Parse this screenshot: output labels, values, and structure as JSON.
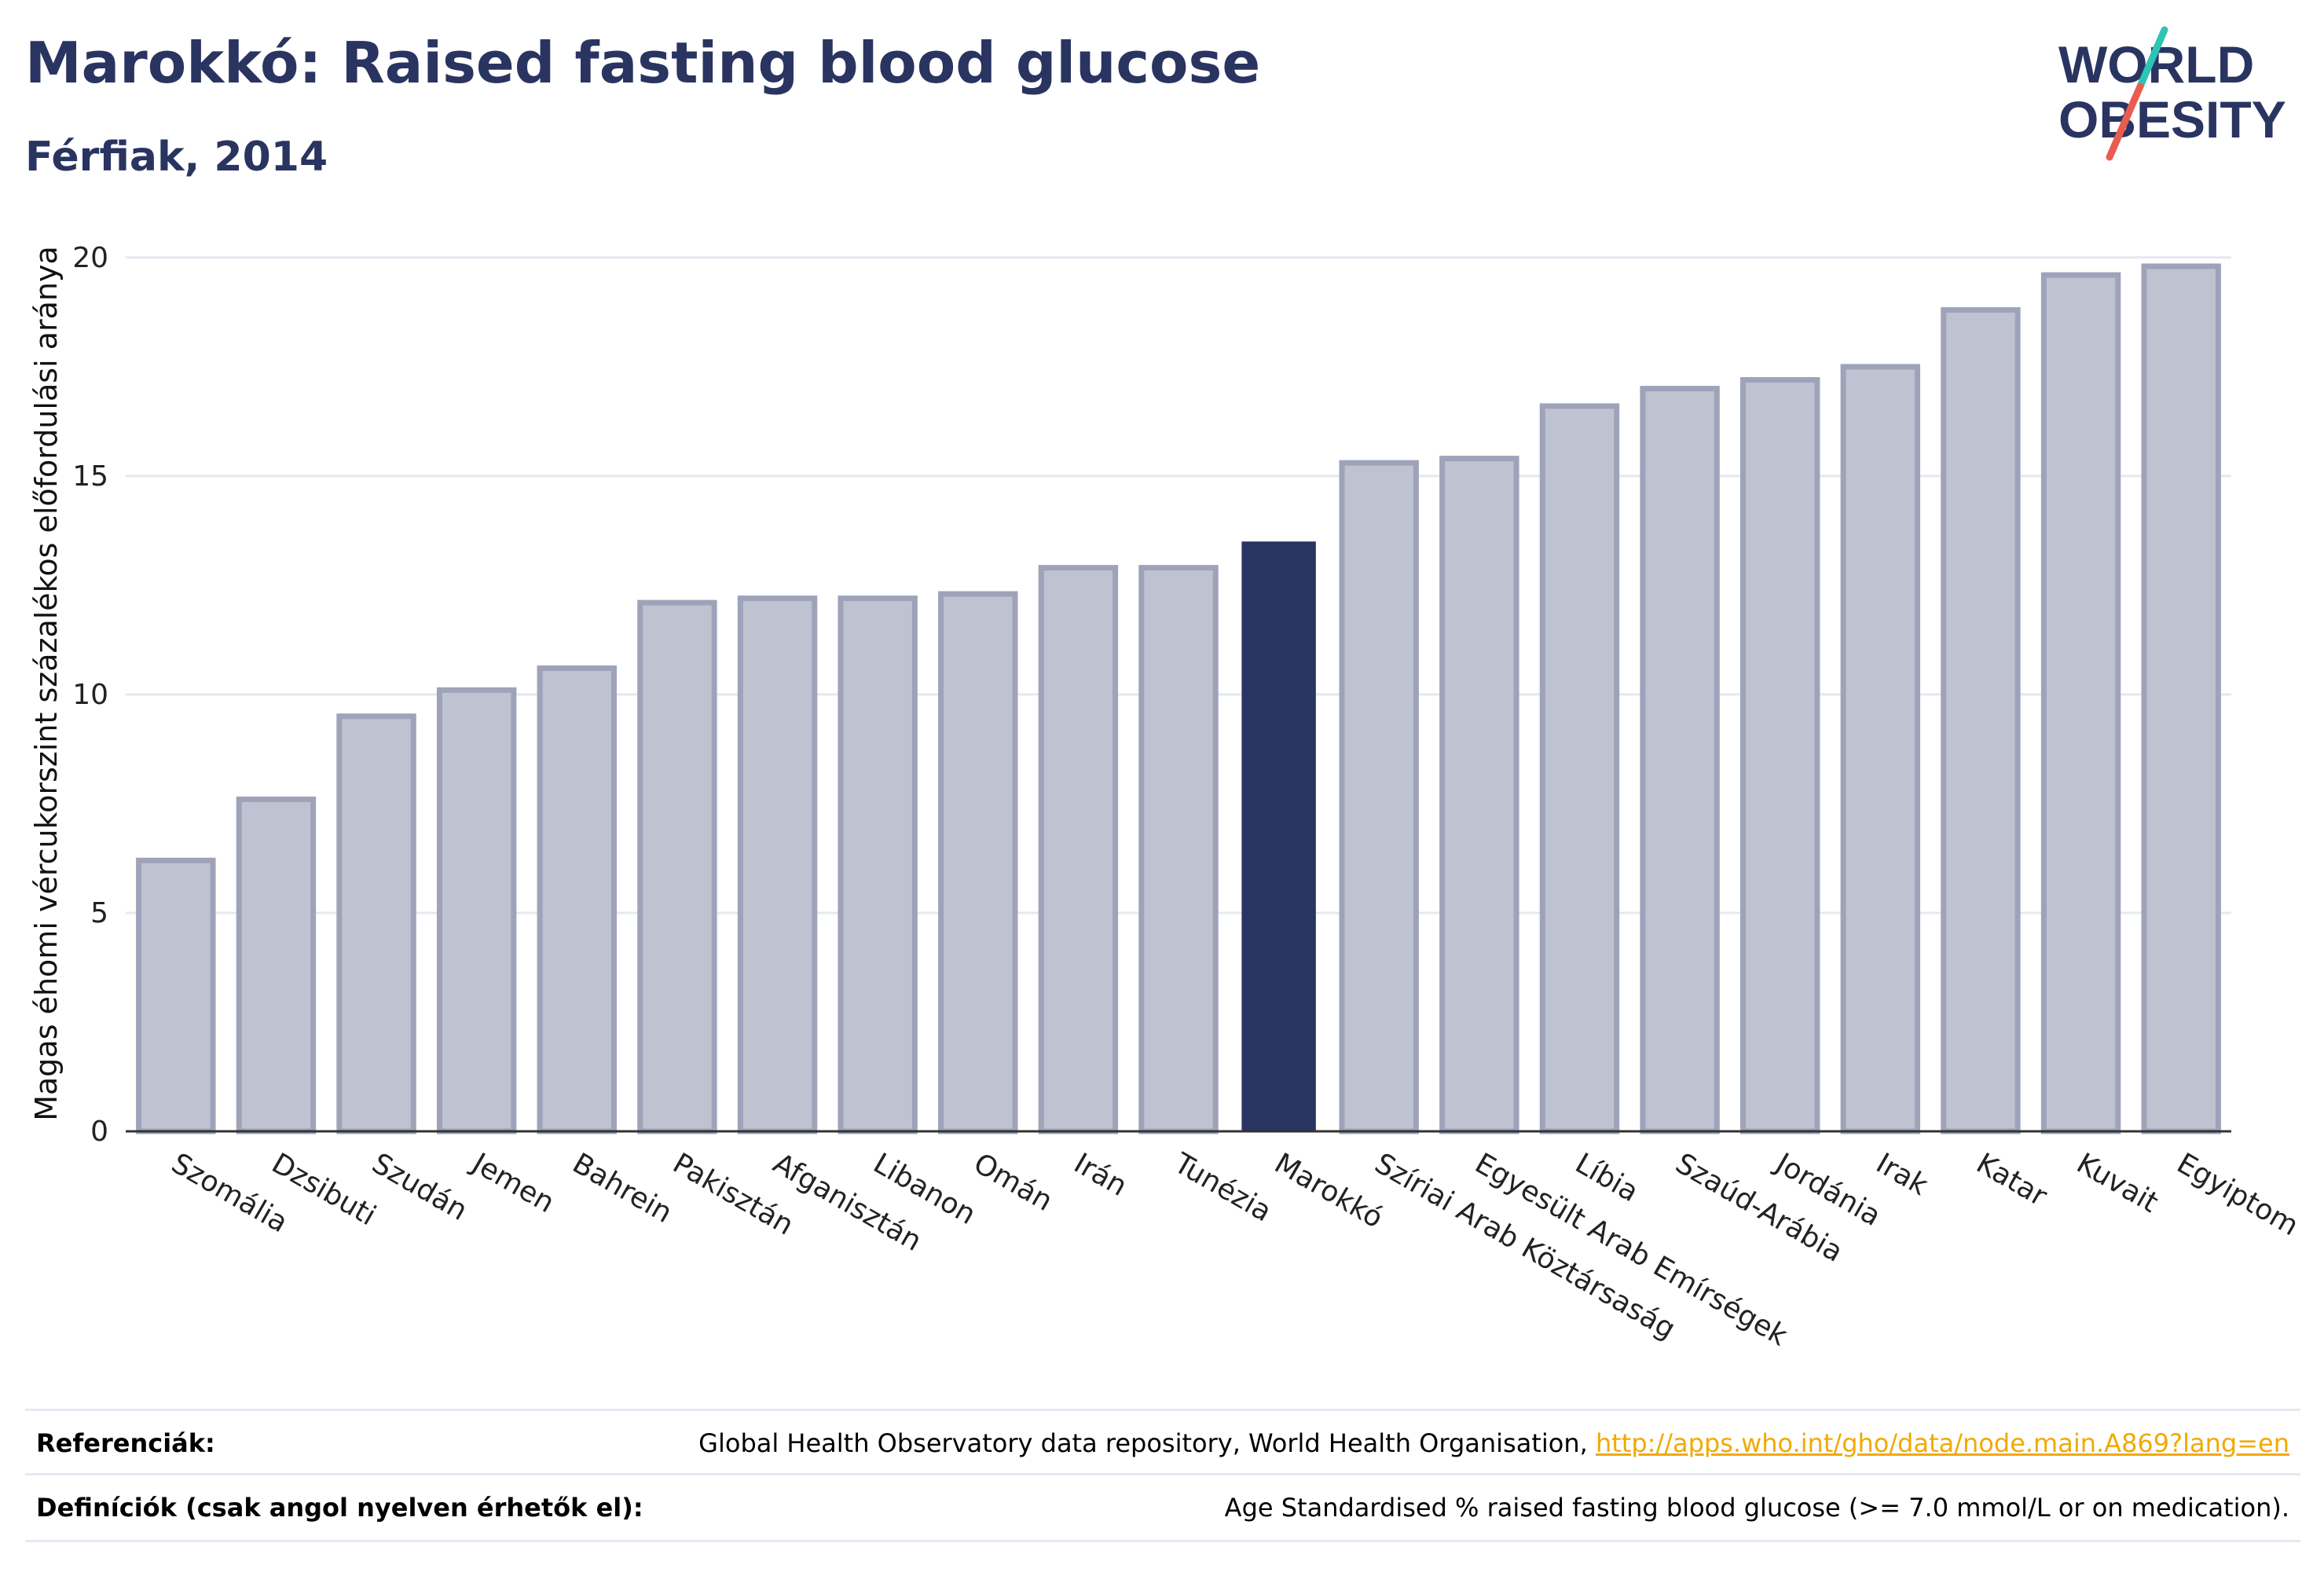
{
  "header": {
    "title": "Marokkó: Raised fasting blood glucose",
    "subtitle": "Férfiak, 2014"
  },
  "logo": {
    "line1": "WORLD",
    "line2": "OBESITY",
    "accent_colors": [
      "#2ec4b6",
      "#e85d4f"
    ],
    "text_color": "#2a3461"
  },
  "chart_data": {
    "type": "bar",
    "title": "Marokkó: Raised fasting blood glucose",
    "subtitle": "Férfiak, 2014",
    "xlabel": "",
    "ylabel": "Magas éhomi vércukorszint százalékos előfordulási aránya",
    "ylim": [
      0,
      20.5
    ],
    "yticks": [
      0,
      5,
      10,
      15,
      20
    ],
    "grid": true,
    "categories": [
      "Szomália",
      "Dzsibuti",
      "Szudán",
      "Jemen",
      "Bahrein",
      "Pakisztán",
      "Afganisztán",
      "Libanon",
      "Omán",
      "Irán",
      "Tunézia",
      "Marokkó",
      "Szíriai Arab Köztársaság",
      "Egyesült Arab Emírségek",
      "Líbia",
      "Szaúd-Arábia",
      "Jordánia",
      "Irak",
      "Katar",
      "Kuvait",
      "Egyiptom"
    ],
    "values": [
      6.2,
      7.6,
      9.5,
      10.1,
      10.6,
      12.1,
      12.2,
      12.2,
      12.3,
      12.9,
      12.9,
      13.5,
      15.3,
      15.4,
      16.6,
      17.0,
      17.2,
      17.5,
      18.8,
      19.6,
      19.8
    ],
    "highlight": "Marokkó",
    "colors": {
      "bar": "#bfc2d0",
      "bar_edge": "#9ea3ba",
      "highlight": "#2a3461",
      "grid": "#e6e8f0",
      "axis": "#333333"
    }
  },
  "footer": {
    "references_label": "Referenciák:",
    "references_text": "Global Health Observatory data repository, World Health Organisation,",
    "references_link": "http://apps.who.int/gho/data/node.main.A869?lang=en",
    "definitions_label": "Definíciók (csak angol nyelven érhetők el):",
    "definitions_text": "Age Standardised % raised fasting blood glucose (>= 7.0 mmol/L or on medication)."
  }
}
